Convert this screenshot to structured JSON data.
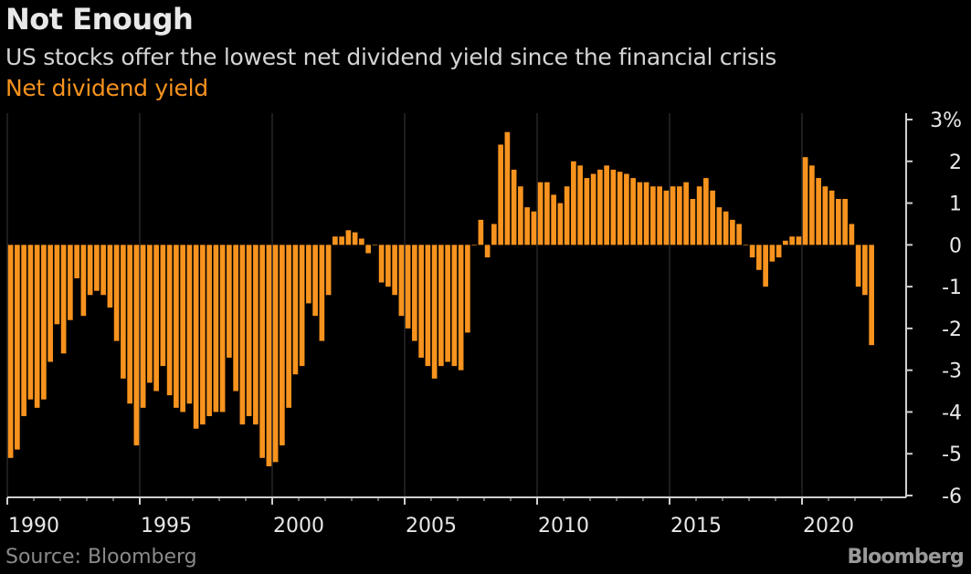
{
  "header": {
    "title": "Not Enough",
    "subtitle": "US stocks offer the lowest net dividend yield since the financial crisis",
    "series_label": "Net dividend yield"
  },
  "footer": {
    "source": "Source: Bloomberg",
    "brand": "Bloomberg"
  },
  "colors": {
    "background": "#000000",
    "bar": "#f7931e",
    "grid": "#3a3a3a",
    "axis": "#cfcfcf",
    "text": "#e8e8e8"
  },
  "chart_data": {
    "type": "bar",
    "title": "Not Enough",
    "subtitle": "US stocks offer the lowest net dividend yield since the financial crisis",
    "series": [
      {
        "name": "Net dividend yield",
        "color": "#f7931e",
        "x_start": 1990.0,
        "x_step": 0.25,
        "values": [
          -5.1,
          -4.9,
          -4.1,
          -3.7,
          -3.9,
          -3.7,
          -2.8,
          -1.9,
          -2.6,
          -1.8,
          -0.8,
          -1.7,
          -1.2,
          -1.1,
          -1.2,
          -1.5,
          -2.3,
          -3.2,
          -3.8,
          -4.8,
          -3.9,
          -3.3,
          -3.5,
          -2.9,
          -3.6,
          -3.9,
          -4.0,
          -3.8,
          -4.4,
          -4.3,
          -4.1,
          -4.0,
          -4.0,
          -2.7,
          -3.5,
          -4.3,
          -4.1,
          -4.3,
          -5.1,
          -5.3,
          -5.2,
          -4.8,
          -3.9,
          -3.1,
          -2.9,
          -1.4,
          -1.7,
          -2.3,
          -1.2,
          0.2,
          0.2,
          0.35,
          0.3,
          0.15,
          -0.2,
          0.0,
          -0.9,
          -1.0,
          -1.2,
          -1.7,
          -2.0,
          -2.3,
          -2.7,
          -2.9,
          -3.2,
          -2.9,
          -2.8,
          -2.9,
          -3.0,
          -2.1,
          0.0,
          0.6,
          -0.3,
          0.5,
          2.4,
          2.7,
          1.8,
          1.4,
          0.9,
          0.8,
          1.5,
          1.5,
          1.2,
          1.0,
          1.4,
          2.0,
          1.9,
          1.6,
          1.7,
          1.8,
          1.9,
          1.8,
          1.75,
          1.7,
          1.6,
          1.5,
          1.5,
          1.4,
          1.4,
          1.3,
          1.4,
          1.4,
          1.5,
          1.1,
          1.4,
          1.6,
          1.3,
          0.9,
          0.8,
          0.6,
          0.5,
          0.0,
          -0.3,
          -0.6,
          -1.0,
          -0.4,
          -0.3,
          0.1,
          0.2,
          0.2,
          2.1,
          1.9,
          1.6,
          1.4,
          1.3,
          1.1,
          1.1,
          0.5,
          -1.0,
          -1.2,
          -2.4
        ]
      }
    ],
    "x_ticks": [
      1990,
      1995,
      2000,
      2005,
      2010,
      2015,
      2020
    ],
    "x_tick_labels": [
      "1990",
      "1995",
      "2000",
      "2005",
      "2010",
      "2015",
      "2020"
    ],
    "xlim": [
      1990,
      2024
    ],
    "y_ticks": [
      3,
      2,
      1,
      0,
      -1,
      -2,
      -3,
      -4,
      -5,
      -6
    ],
    "y_tick_labels": [
      "3%",
      "2",
      "1",
      "0",
      "-1",
      "-2",
      "-3",
      "-4",
      "-5",
      "-6"
    ],
    "ylim": [
      -6,
      3
    ],
    "grid": "vertical",
    "y_axis_side": "right"
  }
}
